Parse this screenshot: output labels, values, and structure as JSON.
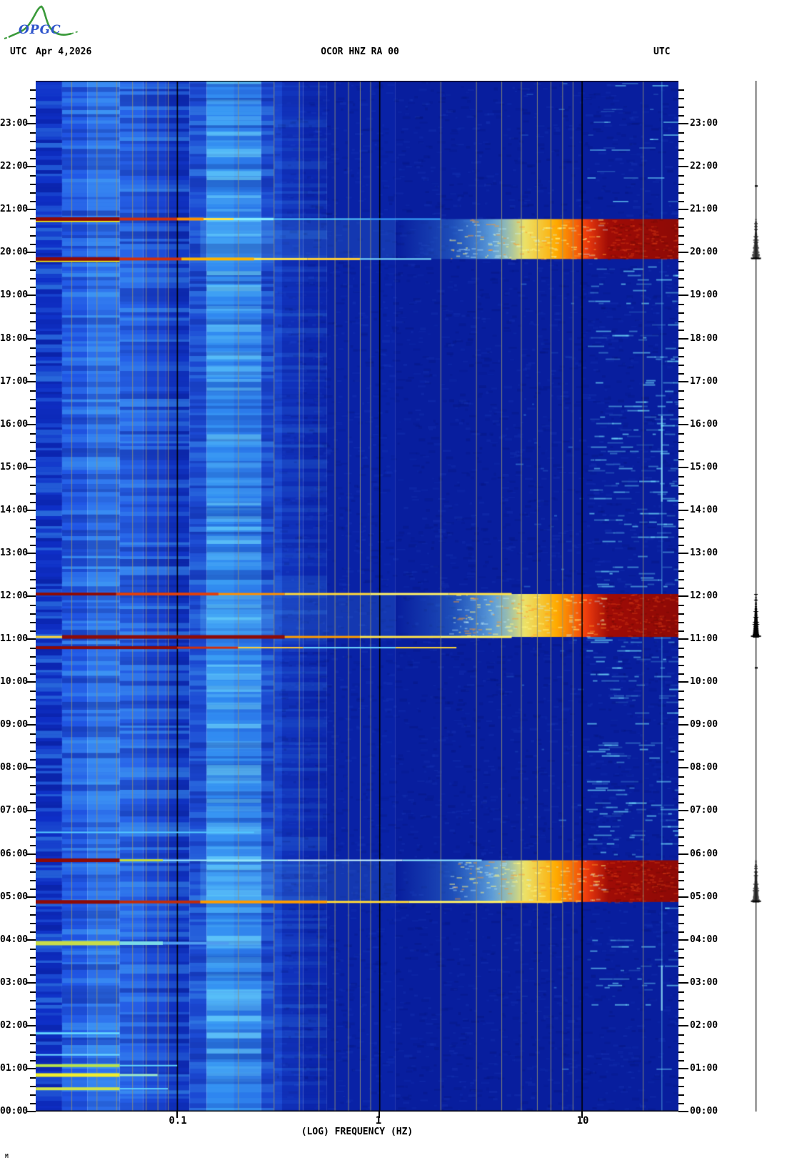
{
  "header": {
    "logo_text": "OPGC",
    "utc_left": "UTC",
    "date": "Apr 4,2026",
    "title": "OCOR HNZ RA 00",
    "utc_right": "UTC"
  },
  "footer": {
    "mark": "M"
  },
  "x_axis": {
    "label": "(LOG) FREQUENCY (HZ)",
    "tick_labels": [
      "0.1",
      "1",
      "10"
    ],
    "tick_freqs": [
      0.1,
      1,
      10
    ]
  },
  "y_axis": {
    "unit": "UTC",
    "hour_labels": [
      "00:00",
      "01:00",
      "02:00",
      "03:00",
      "04:00",
      "05:00",
      "06:00",
      "07:00",
      "08:00",
      "09:00",
      "10:00",
      "11:00",
      "12:00",
      "13:00",
      "14:00",
      "15:00",
      "16:00",
      "17:00",
      "18:00",
      "19:00",
      "20:00",
      "21:00",
      "22:00",
      "23:00"
    ]
  },
  "chart_data": {
    "type": "heatmap",
    "subtype": "seismic spectrogram (24h, one day per page)",
    "title": "OCOR HNZ RA 00",
    "date": "Apr 4,2026",
    "timezone": "UTC",
    "x": {
      "label": "(LOG) FREQUENCY (HZ)",
      "scale": "log",
      "min_hz": 0.02,
      "max_hz": 30,
      "ticks": [
        0.1,
        1,
        10
      ]
    },
    "y": {
      "label": "time UTC",
      "min_h": 0,
      "max_h": 24,
      "tick_every_h": 1,
      "minor_tick_min": 12,
      "direction": "up"
    },
    "colormap": "jet (dark blue = low power, cyan/yellow = medium, dark red = high)",
    "persistent_features": [
      {
        "name": "microseism band",
        "freq_hz": [
          0.14,
          0.26
        ],
        "level": "bright cyan, banded in time"
      },
      {
        "name": "long-period band",
        "freq_hz": [
          0.03,
          0.07
        ],
        "level": "elevated light blue, banded"
      },
      {
        "name": "cultural high-frequency noise",
        "freq_hz": [
          10,
          30
        ],
        "time_h": [
          2.7,
          19.8
        ],
        "level": "speckled cyan"
      },
      {
        "name": "monochromatic tone",
        "freq_hz": [
          24.7,
          24.7
        ],
        "level": "thin persistent cyan line"
      }
    ],
    "events": [
      {
        "time": "00:32",
        "type": "low-frequency burst 0.02-0.05 Hz",
        "color": "yellow-green"
      },
      {
        "time": "00:51",
        "type": "low-frequency burst 0.02-0.05 Hz",
        "color": "yellow"
      },
      {
        "time": "01:04",
        "type": "low-frequency burst 0.02-0.05 Hz",
        "color": "yellow-green"
      },
      {
        "time": "03:55",
        "type": "low-frequency burst 0.02-0.08 Hz",
        "color": "yellow-green"
      },
      {
        "time": "04:53",
        "type": "broadband impulse, start of high-frequency coda",
        "color": "dark red"
      },
      {
        "time": "05:51",
        "type": "broadband impulse, end of saturated coda 5-30 Hz",
        "color": "dark red"
      },
      {
        "time": "10:48",
        "type": "impulse, mostly below 1 Hz",
        "color": "dark red"
      },
      {
        "time": "11:03",
        "type": "broadband impulse, start of high-frequency coda",
        "color": "dark red"
      },
      {
        "time": "12:03",
        "type": "broadband impulse, end of saturated coda 5-30 Hz",
        "color": "dark red"
      },
      {
        "time": "19:51",
        "type": "broadband impulse, start of high-frequency coda",
        "color": "dark red"
      },
      {
        "time": "20:47",
        "type": "broadband impulse, end of saturated coda 5-30 Hz",
        "color": "dark red"
      }
    ],
    "render": {
      "fmin": 0.02,
      "fmax": 30,
      "bg_bands": [
        [
          0.02,
          0.027,
          "#0f30c8"
        ],
        [
          0.027,
          0.036,
          "#2157e6"
        ],
        [
          0.036,
          0.052,
          "#2e72ee"
        ],
        [
          0.052,
          0.068,
          "#2660e8"
        ],
        [
          0.068,
          0.088,
          "#1b48d8"
        ],
        [
          0.088,
          0.115,
          "#1134c4"
        ],
        [
          0.115,
          0.14,
          "#1c4ad4"
        ],
        [
          0.14,
          0.19,
          "#2f86f0"
        ],
        [
          0.19,
          0.26,
          "#2b78ea"
        ],
        [
          0.26,
          0.33,
          "#1a46d0"
        ],
        [
          0.33,
          0.42,
          "#1132bc"
        ],
        [
          0.42,
          0.55,
          "#0c28b0"
        ],
        [
          0.55,
          1.2,
          "#0922a6"
        ],
        [
          1.2,
          30,
          "#081e9e"
        ]
      ],
      "stripe_cols": [
        [
          0.02,
          0.027,
          1.0
        ],
        [
          0.027,
          0.052,
          1.0
        ],
        [
          0.052,
          0.115,
          1.0
        ],
        [
          0.115,
          0.3,
          0.85
        ],
        [
          0.3,
          0.55,
          0.4
        ]
      ],
      "grid_minor": [
        0.03,
        0.04,
        0.05,
        0.06,
        0.07,
        0.08,
        0.09,
        0.2,
        0.3,
        0.4,
        0.5,
        0.6,
        0.7,
        0.8,
        0.9,
        2,
        3,
        4,
        5,
        6,
        7,
        8,
        9,
        20
      ],
      "grid_major": [
        0.1,
        1,
        10
      ],
      "tone_hz": 24.7,
      "tone_bright": [
        [
          2.35,
          3.4
        ],
        [
          14.2,
          16.2
        ]
      ],
      "noise_windows": [
        {
          "t0": 0.15,
          "t1": 2.7,
          "d": 0.12
        },
        {
          "t0": 2.7,
          "t1": 3.4,
          "d": 1.2
        },
        {
          "t0": 3.4,
          "t1": 4.75,
          "d": 0.45
        },
        {
          "t0": 4.95,
          "t1": 19.78,
          "d": 0.95
        },
        {
          "t0": 19.95,
          "t1": 23.95,
          "d": 0.3
        }
      ],
      "blob_stops": [
        [
          1.2,
          "rgba(80,190,255,0)"
        ],
        [
          2.3,
          "rgba(90,205,255,0.28)"
        ],
        [
          3.6,
          "rgba(150,240,255,0.6)"
        ],
        [
          5.2,
          "rgba(255,242,100,0.92)"
        ],
        [
          7.5,
          "#ffaa00"
        ],
        [
          10.5,
          "#ef3d0e"
        ],
        [
          13.5,
          "#a00c06"
        ],
        [
          30,
          "#8e0a06"
        ]
      ],
      "blobs": [
        {
          "t0": 19.85,
          "t1": 20.78
        },
        {
          "t0": 11.05,
          "t1": 12.05
        },
        {
          "t0": 4.88,
          "t1": 5.85
        }
      ],
      "lines": [
        {
          "t": 20.78,
          "u": 1,
          "segs": [
            [
              0.02,
              0.052,
              "#8e0b06",
              5
            ],
            [
              0.052,
              0.1,
              "#d0300e",
              4
            ],
            [
              0.1,
              0.135,
              "#ff9000",
              4
            ],
            [
              0.135,
              0.19,
              "#ffe24a",
              3
            ],
            [
              0.19,
              0.3,
              "#86ecff",
              3
            ],
            [
              0.3,
              0.9,
              "#55ccff",
              2
            ],
            [
              0.9,
              2.0,
              "#3aa8ff",
              2
            ]
          ]
        },
        {
          "t": 19.85,
          "u": 1,
          "segs": [
            [
              0.02,
              0.052,
              "#8e0b06",
              5
            ],
            [
              0.052,
              0.105,
              "#d0300e",
              4
            ],
            [
              0.105,
              0.24,
              "#ffb300",
              4
            ],
            [
              0.24,
              0.44,
              "#ffe24a",
              3
            ],
            [
              0.44,
              0.8,
              "#ffcf3a",
              3
            ],
            [
              0.8,
              1.8,
              "#7de0ff",
              2
            ]
          ]
        },
        {
          "t": 12.05,
          "u": 0,
          "segs": [
            [
              0.02,
              0.05,
              "#8e0b06",
              4
            ],
            [
              0.05,
              0.16,
              "#e0400d",
              4
            ],
            [
              0.16,
              0.34,
              "#ff9000",
              3
            ],
            [
              0.34,
              0.9,
              "#ffd83a",
              3
            ],
            [
              0.9,
              2.2,
              "#fff066",
              3
            ],
            [
              2.2,
              4.5,
              "#ffe24a",
              3
            ]
          ]
        },
        {
          "t": 11.05,
          "u": 0,
          "segs": [
            [
              0.02,
              0.027,
              "#ffd83a",
              3
            ],
            [
              0.027,
              0.34,
              "#8e0b06",
              5
            ],
            [
              0.34,
              0.8,
              "#ff9c00",
              3
            ],
            [
              0.8,
              2.0,
              "#ffe24a",
              3
            ],
            [
              2.0,
              4.5,
              "#fff066",
              3
            ]
          ]
        },
        {
          "t": 10.8,
          "u": 0,
          "segs": [
            [
              0.02,
              0.1,
              "#8e0b06",
              4
            ],
            [
              0.1,
              0.2,
              "#d0300e",
              3
            ],
            [
              0.2,
              0.42,
              "#ffcf3a",
              2
            ],
            [
              0.42,
              1.2,
              "#6fd8ff",
              2
            ],
            [
              1.2,
              2.4,
              "#ffd83a",
              2
            ]
          ]
        },
        {
          "t": 6.5,
          "u": 0,
          "segs": [
            [
              0.02,
              0.24,
              "#55c8ff",
              2
            ]
          ]
        },
        {
          "t": 5.85,
          "u": 0,
          "segs": [
            [
              0.02,
              0.052,
              "#8e0b06",
              5
            ],
            [
              0.052,
              0.085,
              "#c4dc40",
              3
            ],
            [
              0.085,
              0.35,
              "#9feeff",
              2
            ],
            [
              0.35,
              1.3,
              "#c8f4ff",
              2
            ],
            [
              1.3,
              3.2,
              "#8fe4ff",
              2
            ]
          ]
        },
        {
          "t": 4.88,
          "u": 0,
          "segs": [
            [
              0.02,
              0.052,
              "#8e0b06",
              5
            ],
            [
              0.052,
              0.13,
              "#c02c0c",
              4
            ],
            [
              0.13,
              0.55,
              "#ff9c00",
              4
            ],
            [
              0.55,
              1.4,
              "#ffd83a",
              3
            ],
            [
              1.4,
              4.2,
              "#fff066",
              3
            ],
            [
              4.2,
              8,
              "#ffcf3a",
              3
            ]
          ]
        },
        {
          "t": 3.92,
          "u": 0,
          "segs": [
            [
              0.02,
              0.052,
              "#c8dd4a",
              6
            ],
            [
              0.052,
              0.085,
              "#7adbe8",
              5
            ],
            [
              0.085,
              0.18,
              "#4f9cf0",
              4
            ]
          ]
        },
        {
          "t": 1.82,
          "u": 0,
          "segs": [
            [
              0.02,
              0.052,
              "#62d4ff",
              3
            ]
          ]
        },
        {
          "t": 1.32,
          "u": 0,
          "segs": [
            [
              0.02,
              0.052,
              "#6fd8ff",
              2
            ]
          ]
        },
        {
          "t": 1.07,
          "u": 0,
          "segs": [
            [
              0.02,
              0.052,
              "#b9e34a",
              4
            ],
            [
              0.052,
              0.1,
              "#62d4ff",
              2
            ]
          ]
        },
        {
          "t": 0.85,
          "u": 0,
          "segs": [
            [
              0.02,
              0.052,
              "#f0ee2e",
              5
            ],
            [
              0.052,
              0.08,
              "#9fe8c8",
              3
            ]
          ]
        },
        {
          "t": 0.53,
          "u": 0,
          "segs": [
            [
              0.02,
              0.052,
              "#cfe24a",
              4
            ],
            [
              0.052,
              0.09,
              "#62d4ff",
              2
            ]
          ]
        }
      ],
      "trace_events": [
        [
          19.85,
          20.78
        ],
        [
          11.05,
          12.05
        ],
        [
          4.88,
          5.85
        ]
      ],
      "trace_dots": [
        21.55,
        10.33
      ]
    }
  }
}
